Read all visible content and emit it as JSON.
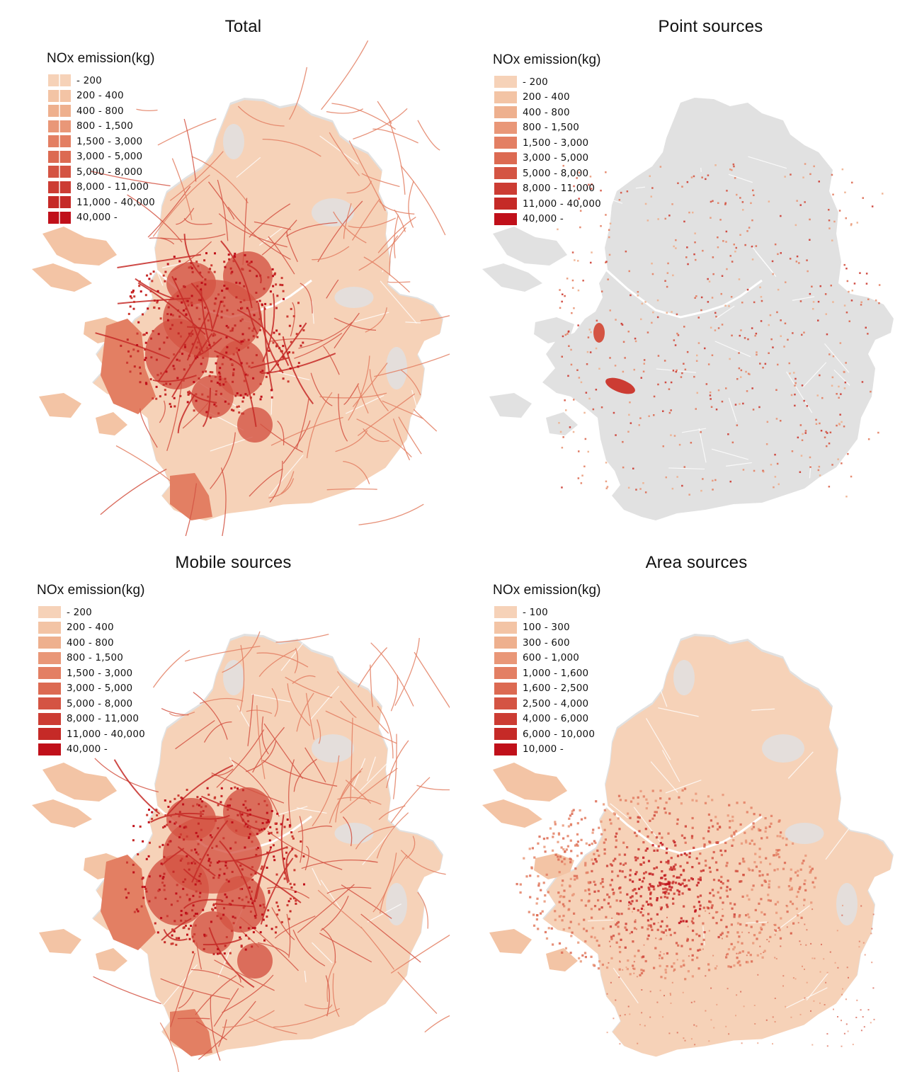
{
  "legend_title": "NOx emission(kg)",
  "colors": {
    "background_land": "#e1e1e1",
    "scale": [
      "#f6d2b8",
      "#f3c4a5",
      "#eeb08e",
      "#e99778",
      "#e37f63",
      "#dc6a52",
      "#d45443",
      "#cc3c33",
      "#c52a27",
      "#c0101a"
    ]
  },
  "panels": [
    {
      "title": "Total",
      "legend": [
        "- 200",
        "200 - 400",
        "400 - 800",
        "800 - 1,500",
        "1,500 - 3,000",
        "3,000 - 5,000",
        "5,000 - 8,000",
        "8,000 - 11,000",
        "11,000 - 40,000",
        "40,000 -"
      ],
      "fill_level": "high"
    },
    {
      "title": "Point sources",
      "legend": [
        "- 200",
        "200 - 400",
        "400 - 800",
        "800 - 1,500",
        "1,500 - 3,000",
        "3,000 - 5,000",
        "5,000 - 8,000",
        "8,000 - 11,000",
        "11,000 - 40,000",
        "40,000 -"
      ],
      "fill_level": "sparse"
    },
    {
      "title": "Mobile sources",
      "legend": [
        "- 200",
        "200 - 400",
        "400 - 800",
        "800 - 1,500",
        "1,500 - 3,000",
        "3,000 - 5,000",
        "5,000 - 8,000",
        "8,000 - 11,000",
        "11,000 - 40,000",
        "40,000 -"
      ],
      "fill_level": "high"
    },
    {
      "title": "Area sources",
      "legend": [
        "- 100",
        "100 - 300",
        "300 - 600",
        "600 - 1,000",
        "1,000 - 1,600",
        "1,600 - 2,500",
        "2,500 - 4,000",
        "4,000 - 6,000",
        "6,000 - 10,000",
        "10,000 -"
      ],
      "fill_level": "central"
    }
  ]
}
